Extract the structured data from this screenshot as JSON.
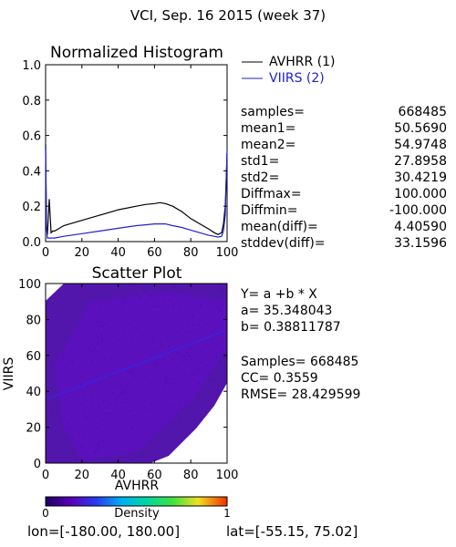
{
  "page_title": "VCI,  Sep. 16 2015 (week 37)",
  "colors": {
    "avhrr": "#000000",
    "viirs": "#2020d0",
    "scatter_fill": "#4a0aa8",
    "fit_line": "#2a2af0"
  },
  "chart_data": [
    {
      "type": "line",
      "title": "Normalized Histogram",
      "xlim": [
        0,
        100
      ],
      "ylim": [
        0,
        1.0
      ],
      "xticks": [
        "0",
        "20",
        "40",
        "60",
        "80",
        "100"
      ],
      "yticks": [
        "0.0",
        "0.2",
        "0.4",
        "0.6",
        "0.8",
        "1.0"
      ],
      "legend_position": "right",
      "series": [
        {
          "name": "AVHRR (1)",
          "x": [
            0,
            0.5,
            1,
            2,
            3,
            4,
            5,
            10,
            20,
            30,
            40,
            50,
            55,
            60,
            63,
            66,
            70,
            75,
            80,
            85,
            90,
            93,
            95,
            97,
            98,
            99,
            100
          ],
          "y": [
            0.55,
            0.08,
            0.04,
            0.24,
            0.05,
            0.06,
            0.06,
            0.09,
            0.12,
            0.15,
            0.18,
            0.2,
            0.21,
            0.215,
            0.22,
            0.215,
            0.2,
            0.17,
            0.13,
            0.1,
            0.07,
            0.05,
            0.04,
            0.05,
            0.1,
            0.2,
            0.5
          ]
        },
        {
          "name": "VIIRS (2)",
          "x": [
            0,
            0.5,
            1,
            2,
            3,
            5,
            10,
            20,
            30,
            40,
            50,
            55,
            60,
            63,
            66,
            70,
            75,
            80,
            85,
            90,
            93,
            95,
            97,
            98,
            99,
            100
          ],
          "y": [
            0.52,
            0.08,
            0.02,
            0.02,
            0.02,
            0.02,
            0.03,
            0.045,
            0.06,
            0.075,
            0.09,
            0.095,
            0.1,
            0.1,
            0.1,
            0.09,
            0.08,
            0.065,
            0.05,
            0.035,
            0.03,
            0.025,
            0.03,
            0.06,
            0.15,
            0.52
          ]
        }
      ]
    },
    {
      "type": "scatter",
      "title": "Scatter Plot",
      "xlabel": "AVHRR",
      "ylabel": "VIIRS",
      "xlim": [
        0,
        100
      ],
      "ylim": [
        0,
        100
      ],
      "xticks": [
        "0",
        "20",
        "40",
        "60",
        "80",
        "100"
      ],
      "yticks": [
        "0",
        "20",
        "40",
        "60",
        "80",
        "100"
      ],
      "fit_line": {
        "a": 35.348043,
        "b": 0.38811787
      }
    }
  ],
  "stats": [
    {
      "label": "samples=",
      "value": "668485"
    },
    {
      "label": "mean1=",
      "value": "50.5690"
    },
    {
      "label": "mean2=",
      "value": "54.9748"
    },
    {
      "label": "std1=",
      "value": "27.8958"
    },
    {
      "label": "std2=",
      "value": "30.4219"
    },
    {
      "label": "Diffmax=",
      "value": "100.000"
    },
    {
      "label": "Diffmin=",
      "value": "-100.000"
    },
    {
      "label": "mean(diff)=",
      "value": "4.40590"
    },
    {
      "label": "stddev(diff)=",
      "value": "33.1596"
    }
  ],
  "regression": {
    "equation": "Y= a +b * X",
    "a_text": "a= 35.348043",
    "b_text": "b= 0.38811787",
    "samples_text": "Samples= 668485",
    "cc_text": "CC=  0.3559",
    "rmse_text": "RMSE= 28.429599"
  },
  "colorbar": {
    "min_label": "0",
    "title": "Density",
    "max_label": "1"
  },
  "footer": {
    "lon_text": "lon=[-180.00, 180.00]",
    "lat_text": "lat=[-55.15, 75.02]"
  }
}
